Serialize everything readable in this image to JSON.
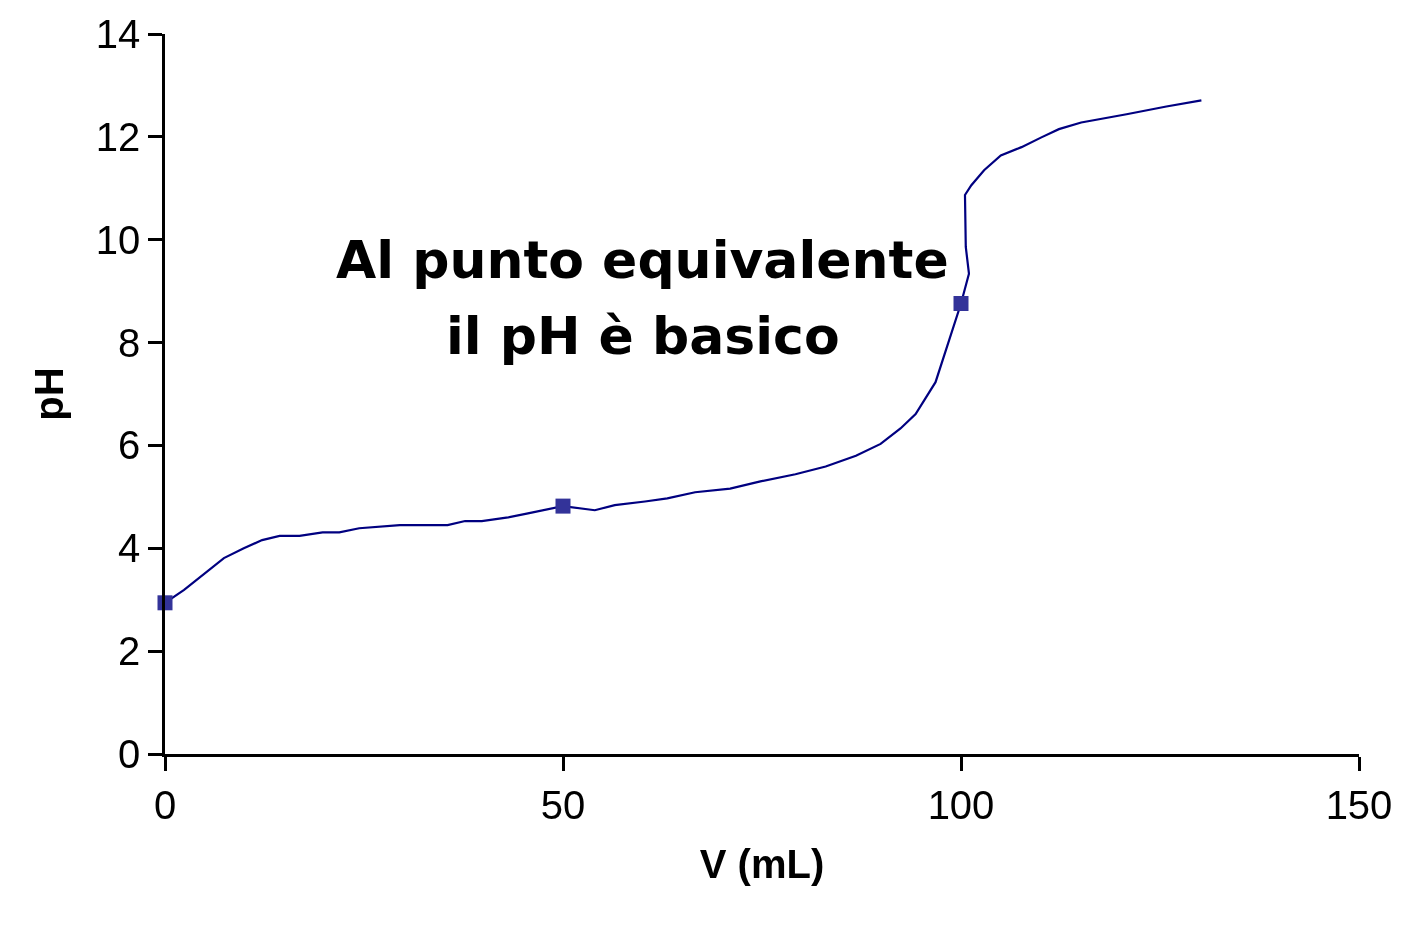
{
  "chart_data": {
    "type": "line",
    "xlabel": "V (mL)",
    "ylabel": "pH",
    "xlim": [
      0,
      150
    ],
    "ylim": [
      0,
      14
    ],
    "xticks": [
      0,
      50,
      100,
      150
    ],
    "yticks": [
      0,
      2,
      4,
      6,
      8,
      10,
      12,
      14
    ],
    "annotations": [
      "Al punto equivalente",
      "il pH è basico"
    ],
    "series": [
      {
        "color": "#000080",
        "marker": "none",
        "x": [
          0,
          2.4,
          7.4,
          9.9,
          12.2,
          14.4,
          16.9,
          19.8,
          21.9,
          24.4,
          29.5,
          35.5,
          37.7,
          39.8,
          43.1,
          45.6,
          50,
          54,
          56.5,
          60.3,
          63.1,
          66.6,
          71,
          74.8,
          79.2,
          83,
          86.8,
          89.9,
          92.4,
          94.3,
          96.8,
          100,
          101,
          100.6,
          100.5,
          101.3,
          102.9,
          105,
          107.6,
          110.1,
          112.3,
          115.1,
          120.8,
          125.8,
          130.2
        ],
        "values": [
          2.94,
          3.19,
          3.81,
          4.0,
          4.16,
          4.24,
          4.24,
          4.31,
          4.31,
          4.39,
          4.45,
          4.45,
          4.53,
          4.53,
          4.6,
          4.68,
          4.82,
          4.74,
          4.84,
          4.91,
          4.97,
          5.09,
          5.16,
          5.3,
          5.44,
          5.59,
          5.8,
          6.03,
          6.33,
          6.61,
          7.23,
          8.76,
          9.34,
          9.86,
          10.87,
          11.06,
          11.35,
          11.64,
          11.8,
          11.99,
          12.15,
          12.28,
          12.44,
          12.59,
          12.71
        ]
      },
      {
        "type": "scatter",
        "color": "#333399",
        "marker": "square",
        "x": [
          0,
          50,
          100
        ],
        "values": [
          2.94,
          4.82,
          8.76
        ]
      }
    ]
  }
}
